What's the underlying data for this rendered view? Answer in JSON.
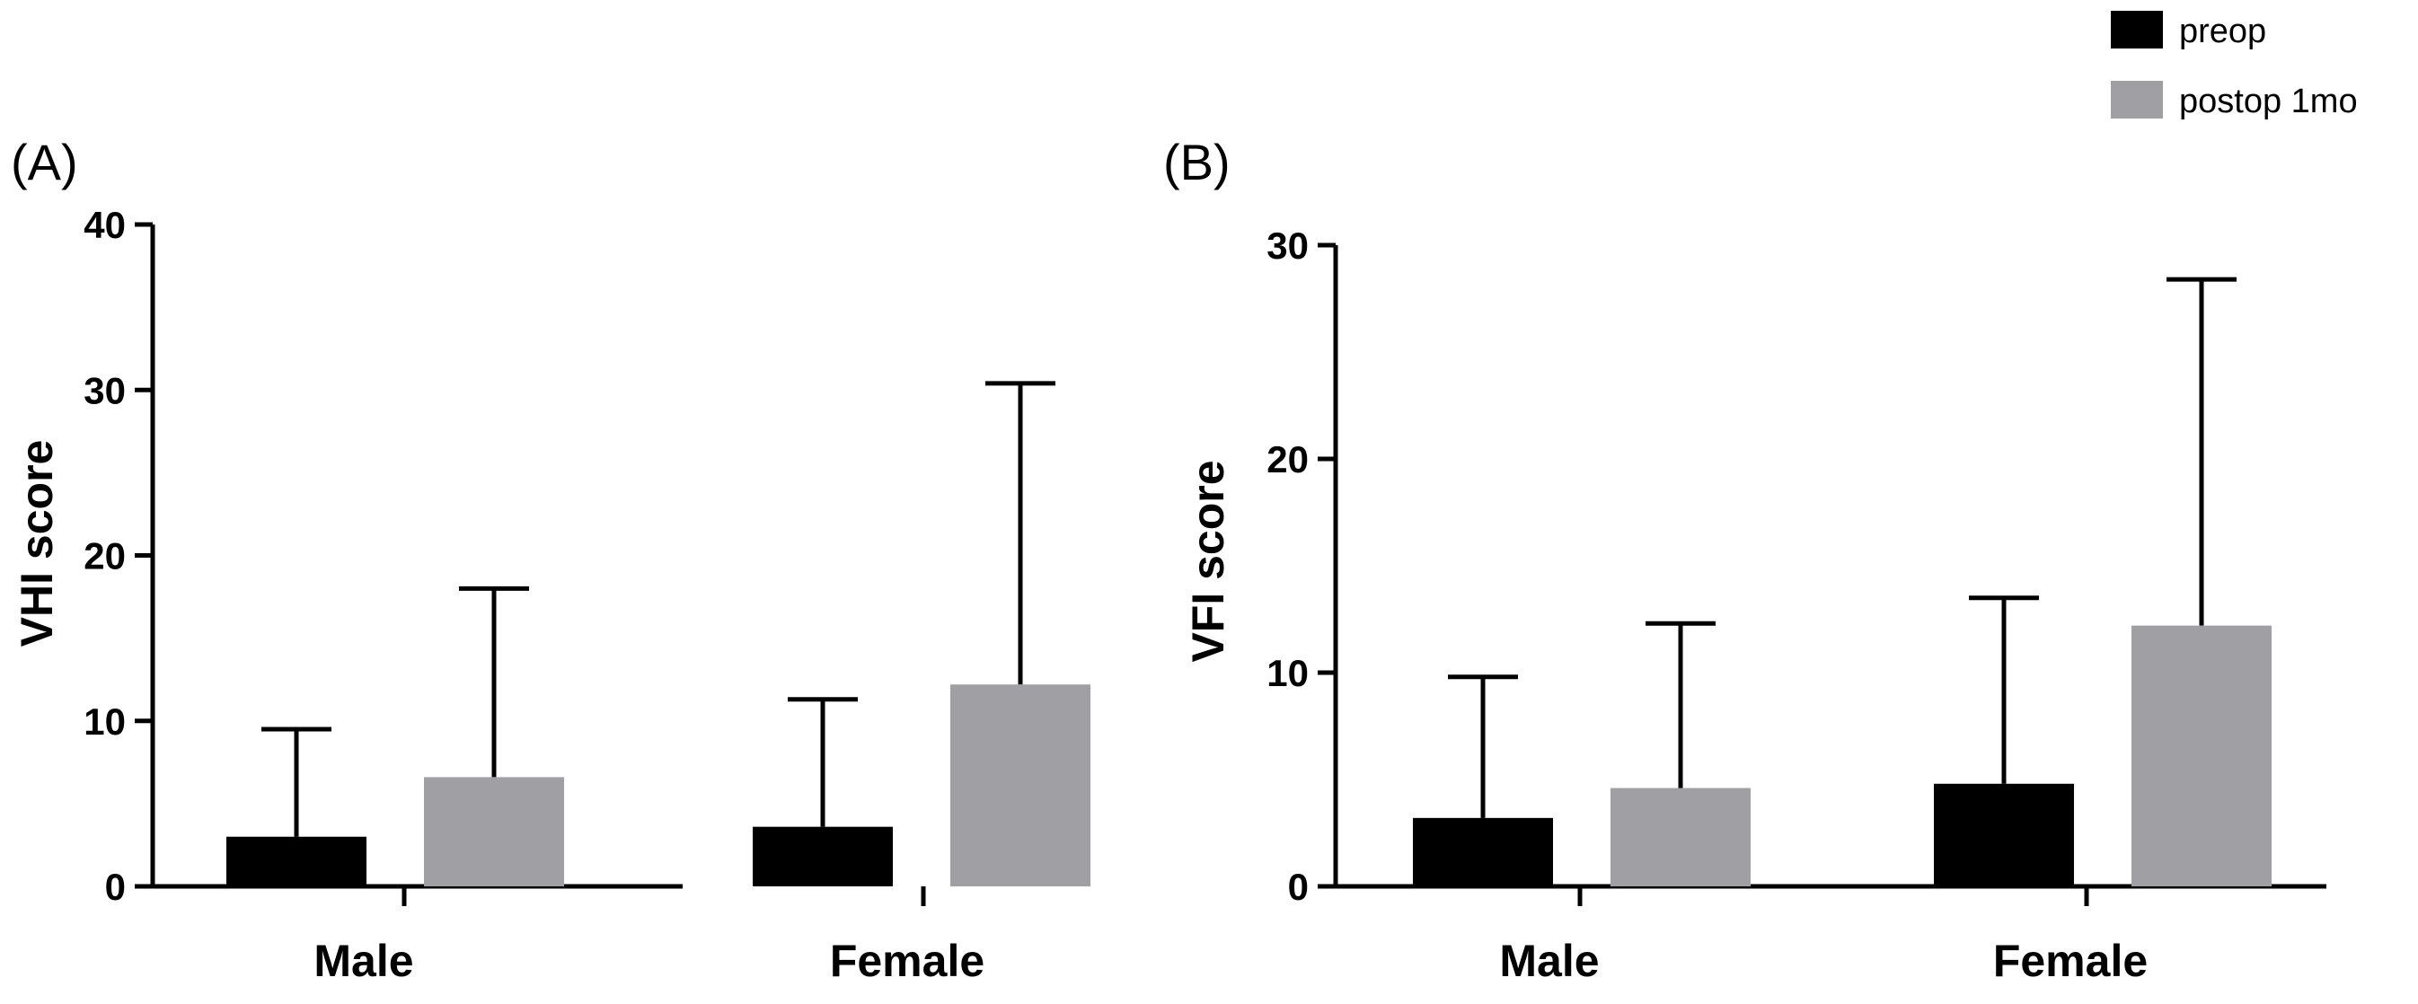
{
  "legend": {
    "entries": [
      {
        "label": "preop",
        "color": "#000000"
      },
      {
        "label": "postop 1mo",
        "color": "#a0a0a4"
      }
    ]
  },
  "chart_data": [
    {
      "type": "bar",
      "panel_label": "(A)",
      "title": "",
      "xlabel": "",
      "ylabel": "VHI score",
      "ylim": [
        0,
        40
      ],
      "yticks": [
        0,
        10,
        20,
        30,
        40
      ],
      "categories": [
        "Male",
        "Female"
      ],
      "series": [
        {
          "name": "preop",
          "color": "#000000",
          "values": [
            3.0,
            3.6
          ],
          "error_upper": [
            9.5,
            11.3
          ]
        },
        {
          "name": "postop 1mo",
          "color": "#a0a0a4",
          "values": [
            6.6,
            12.2
          ],
          "error_upper": [
            18.0,
            30.4
          ]
        }
      ]
    },
    {
      "type": "bar",
      "panel_label": "(B)",
      "title": "",
      "xlabel": "",
      "ylabel": "VFI score",
      "ylim": [
        0,
        30
      ],
      "yticks": [
        0,
        10,
        20,
        30
      ],
      "categories": [
        "Male",
        "Female"
      ],
      "series": [
        {
          "name": "preop",
          "color": "#000000",
          "values": [
            3.2,
            4.8
          ],
          "error_upper": [
            9.8,
            13.5
          ]
        },
        {
          "name": "postop 1mo",
          "color": "#a0a0a4",
          "values": [
            4.6,
            12.2
          ],
          "error_upper": [
            12.3,
            28.4
          ]
        }
      ]
    }
  ]
}
